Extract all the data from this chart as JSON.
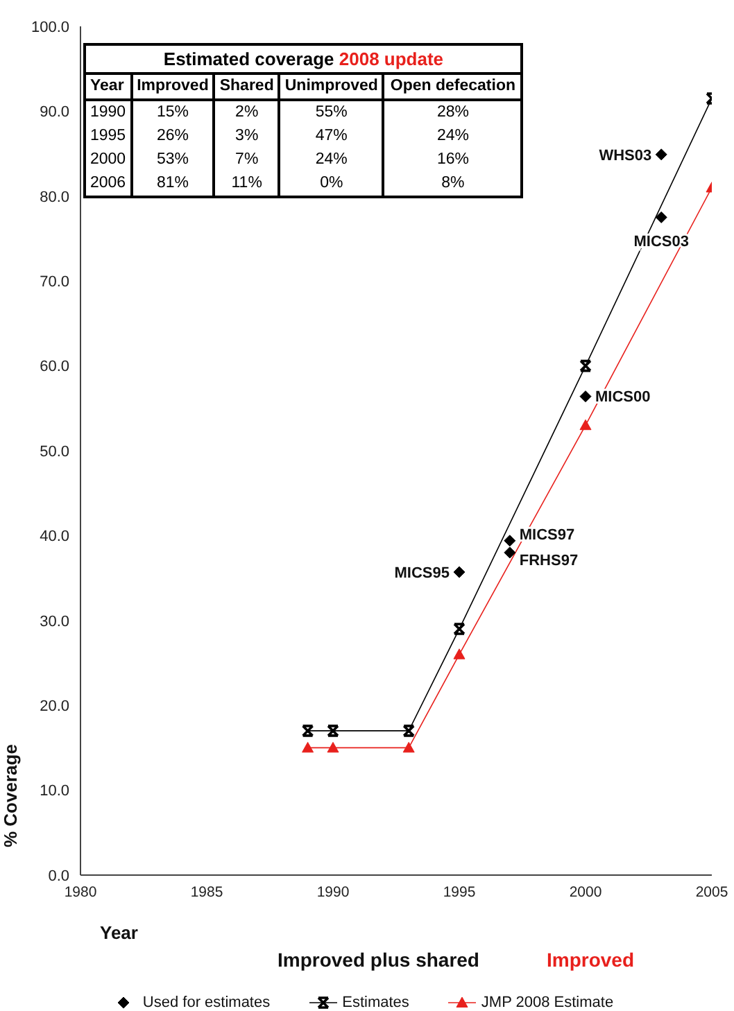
{
  "chart_data": {
    "type": "line",
    "xlabel": "Year",
    "ylabel": "% Coverage",
    "xlim": [
      1980,
      2005
    ],
    "xticks": [
      1980,
      1985,
      1990,
      1995,
      2000,
      2005
    ],
    "ylim": [
      0,
      100
    ],
    "yticks": [
      {
        "value": 0,
        "label": "0.0"
      },
      {
        "value": 10,
        "label": "10.0"
      },
      {
        "value": 20,
        "label": "20.0"
      },
      {
        "value": 30,
        "label": "30.0"
      },
      {
        "value": 40,
        "label": "40.0"
      },
      {
        "value": 50,
        "label": "50.0"
      },
      {
        "value": 60,
        "label": "60.0"
      },
      {
        "value": 70,
        "label": "70.0"
      },
      {
        "value": 80,
        "label": "80.0"
      },
      {
        "value": 90,
        "label": "90.0"
      },
      {
        "value": 100,
        "label": "100.0"
      }
    ],
    "grid": false,
    "legend": "bottom",
    "series": [
      {
        "name": "Used for estimates",
        "type": "scatter",
        "marker": "diamond",
        "color": "#000000",
        "x": [
          1995,
          1997,
          1997,
          2000,
          2003,
          2003
        ],
        "values": [
          35.7,
          39.4,
          38.0,
          56.4,
          77.5,
          84.9
        ]
      },
      {
        "name": "Estimates",
        "marker": "cross",
        "color": "#000000",
        "x": [
          1989,
          1990,
          1993,
          1995,
          2000,
          2005
        ],
        "values": [
          17,
          17,
          17,
          29,
          60,
          91.5
        ]
      },
      {
        "name": "JMP 2008 Estimate",
        "marker": "triangle",
        "color": "#e8201c",
        "x": [
          1989,
          1990,
          1993,
          1995,
          2000,
          2005
        ],
        "values": [
          15,
          15,
          15,
          26,
          53,
          81
        ]
      }
    ],
    "annotations": [
      {
        "text": "MICS95",
        "x": 1995,
        "y": 35.7
      },
      {
        "text": "MICS97",
        "x": 1997,
        "y": 39.4
      },
      {
        "text": "FRHS97",
        "x": 1997,
        "y": 38.0
      },
      {
        "text": "MICS00",
        "x": 2000,
        "y": 56.4
      },
      {
        "text": "MICS03",
        "x": 2003,
        "y": 77.5
      },
      {
        "text": "WHS03",
        "x": 2003,
        "y": 84.9
      },
      "Estimated coverage",
      "2008 update",
      "Year",
      "Improved",
      "Shared",
      "Unimproved",
      "Open defecation",
      "1990",
      "15%",
      "2%",
      "55%",
      "28%",
      "1995",
      "26%",
      "3%",
      "47%",
      "24%",
      "2000",
      "53%",
      "7%",
      "24%",
      "16%",
      "2006",
      "81%",
      "11%",
      "0%",
      "8%",
      "Improved plus shared",
      "Improved"
    ]
  }
}
